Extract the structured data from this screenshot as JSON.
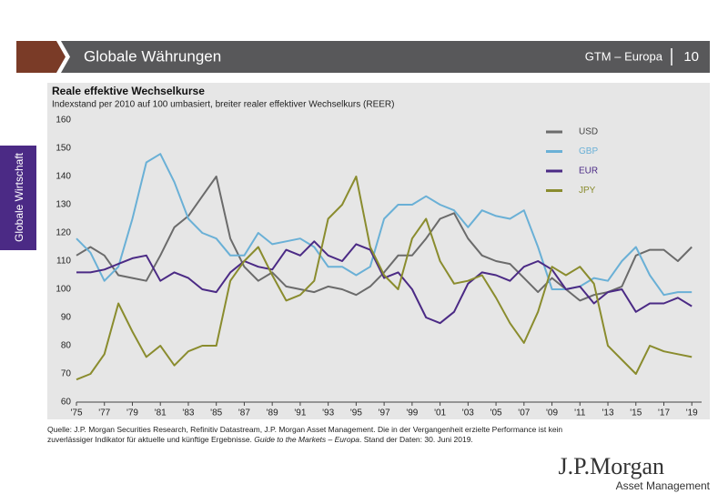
{
  "header": {
    "title": "Globale Währungen",
    "section": "GTM – Europa",
    "page": "10"
  },
  "side_tab": "Globale Wirtschaft",
  "chart_data": {
    "type": "line",
    "title": "Reale effektive Wechselkurse",
    "subtitle": "Indexstand per 2010 auf 100 umbasiert, breiter realer effektiver Wechselkurs (REER)",
    "x": [
      1975,
      1976,
      1977,
      1978,
      1979,
      1980,
      1981,
      1982,
      1983,
      1984,
      1985,
      1986,
      1987,
      1988,
      1989,
      1990,
      1991,
      1992,
      1993,
      1994,
      1995,
      1996,
      1997,
      1998,
      1999,
      2000,
      2001,
      2002,
      2003,
      2004,
      2005,
      2006,
      2007,
      2008,
      2009,
      2010,
      2011,
      2012,
      2013,
      2014,
      2015,
      2016,
      2017,
      2018,
      2019
    ],
    "series": [
      {
        "name": "USD",
        "color": "#6b6b6b",
        "values": [
          112,
          115,
          112,
          105,
          104,
          103,
          112,
          122,
          126,
          133,
          140,
          118,
          108,
          103,
          106,
          101,
          100,
          99,
          101,
          100,
          98,
          101,
          106,
          112,
          112,
          118,
          125,
          127,
          118,
          112,
          110,
          109,
          104,
          99,
          104,
          100,
          96,
          98,
          99,
          101,
          112,
          114,
          114,
          110,
          115
        ]
      },
      {
        "name": "GBP",
        "color": "#6ab0d6",
        "values": [
          118,
          113,
          103,
          108,
          125,
          145,
          148,
          138,
          125,
          120,
          118,
          112,
          112,
          120,
          116,
          117,
          118,
          115,
          108,
          108,
          105,
          108,
          125,
          130,
          130,
          133,
          130,
          128,
          122,
          128,
          126,
          125,
          128,
          115,
          100,
          100,
          101,
          104,
          103,
          110,
          115,
          105,
          98,
          99,
          99
        ]
      },
      {
        "name": "EUR",
        "color": "#4b2a85",
        "values": [
          106,
          106,
          107,
          109,
          111,
          112,
          103,
          106,
          104,
          100,
          99,
          106,
          110,
          108,
          107,
          114,
          112,
          117,
          112,
          110,
          116,
          114,
          104,
          106,
          100,
          90,
          88,
          92,
          102,
          106,
          105,
          103,
          108,
          110,
          107,
          100,
          101,
          95,
          99,
          100,
          92,
          95,
          95,
          97,
          94
        ]
      },
      {
        "name": "JPY",
        "color": "#8a8c2e",
        "values": [
          68,
          70,
          77,
          95,
          85,
          76,
          80,
          73,
          78,
          80,
          80,
          103,
          110,
          115,
          105,
          96,
          98,
          103,
          125,
          130,
          140,
          115,
          105,
          100,
          118,
          125,
          110,
          102,
          103,
          105,
          97,
          88,
          81,
          92,
          108,
          105,
          108,
          102,
          80,
          75,
          70,
          80,
          78,
          77,
          76
        ]
      }
    ],
    "xlim": [
      1975,
      2019.7
    ],
    "xticks": [
      {
        "value": 1975,
        "label": "'75"
      },
      {
        "value": 1977,
        "label": "'77"
      },
      {
        "value": 1979,
        "label": "'79"
      },
      {
        "value": 1981,
        "label": "'81"
      },
      {
        "value": 1983,
        "label": "'83"
      },
      {
        "value": 1985,
        "label": "'85"
      },
      {
        "value": 1987,
        "label": "'87"
      },
      {
        "value": 1989,
        "label": "'89"
      },
      {
        "value": 1991,
        "label": "'91"
      },
      {
        "value": 1993,
        "label": "'93"
      },
      {
        "value": 1995,
        "label": "'95"
      },
      {
        "value": 1997,
        "label": "'97"
      },
      {
        "value": 1999,
        "label": "'99"
      },
      {
        "value": 2001,
        "label": "'01"
      },
      {
        "value": 2003,
        "label": "'03"
      },
      {
        "value": 2005,
        "label": "'05"
      },
      {
        "value": 2007,
        "label": "'07"
      },
      {
        "value": 2009,
        "label": "'09"
      },
      {
        "value": 2011,
        "label": "'11"
      },
      {
        "value": 2013,
        "label": "'13"
      },
      {
        "value": 2015,
        "label": "'15"
      },
      {
        "value": 2017,
        "label": "'17"
      },
      {
        "value": 2019,
        "label": "'19"
      }
    ],
    "ylim": [
      60,
      160
    ],
    "yticks": [
      60,
      70,
      80,
      90,
      100,
      110,
      120,
      130,
      140,
      150,
      160
    ],
    "grid": false,
    "legend": "top-right"
  },
  "footer": {
    "text_1": "Quelle: J.P. Morgan Securities Research, Refinitiv Datastream, J.P. Morgan Asset Management. Die in der Vergangenheit erzielte Performance ist kein zuverlässiger Indikator für aktuelle und künftige Ergebnisse. ",
    "text_italic": "Guide to the Markets – Europa",
    "text_2": ". Stand der Daten: 30. Juni 2019."
  },
  "logo": {
    "name": "J.P.Morgan",
    "tagline": "Asset Management"
  }
}
